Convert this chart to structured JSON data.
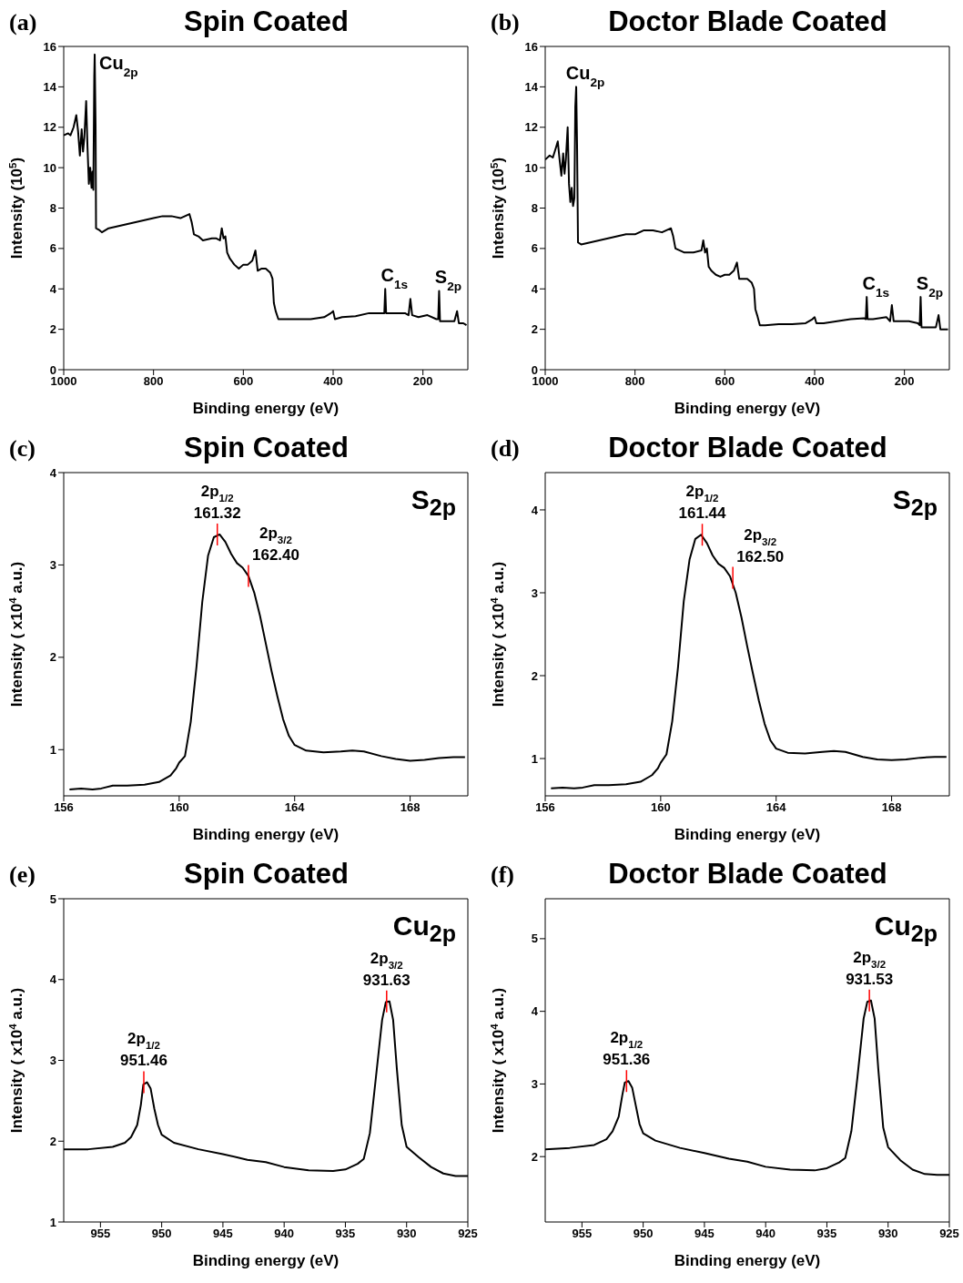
{
  "chart_data": [
    {
      "type": "line",
      "title": "Spin Coated",
      "xlabel": "Binding energy (eV)",
      "ylabel": "Intensity (10$^{5}$)",
      "xlim": [
        1000,
        100
      ],
      "xticks": [
        1000,
        800,
        600,
        400,
        200
      ],
      "ylim": [
        0,
        16
      ],
      "yticks": [
        0,
        2,
        4,
        6,
        8,
        10,
        12,
        14,
        16
      ],
      "annotations": [
        "(a)",
        {
          "text": "Cu$_{2p}$",
          "x": 931,
          "y": 15.6
        },
        {
          "text": "C$_{1s}$",
          "x": 284,
          "y": 4.0
        },
        {
          "text": "S$_{2p}$",
          "x": 164,
          "y": 3.9
        }
      ],
      "x": [
        1000,
        990,
        985,
        978,
        972,
        968,
        964,
        960,
        957,
        954,
        950,
        947,
        944,
        941,
        938,
        936,
        934,
        932,
        931,
        929,
        928,
        920,
        915,
        900,
        880,
        860,
        840,
        820,
        800,
        780,
        760,
        740,
        720,
        715,
        710,
        700,
        690,
        670,
        660,
        652,
        648,
        644,
        640,
        636,
        630,
        620,
        610,
        600,
        590,
        580,
        573,
        568,
        560,
        550,
        540,
        535,
        532,
        528,
        522,
        510,
        480,
        450,
        420,
        405,
        400,
        396,
        380,
        350,
        320,
        290,
        286,
        284,
        282,
        270,
        240,
        232,
        228,
        224,
        210,
        190,
        170,
        166,
        164,
        162,
        150,
        130,
        124,
        120,
        110,
        103
      ],
      "series": [
        {
          "color": "#000000",
          "values": [
            11.6,
            11.7,
            11.6,
            12.0,
            12.6,
            11.8,
            10.6,
            11.9,
            10.8,
            11.5,
            13.3,
            11.0,
            9.2,
            10.0,
            9.0,
            9.8,
            8.9,
            14.5,
            15.6,
            12.0,
            7.0,
            6.9,
            6.8,
            7.0,
            7.1,
            7.2,
            7.3,
            7.4,
            7.5,
            7.6,
            7.6,
            7.5,
            7.7,
            7.3,
            6.7,
            6.6,
            6.4,
            6.5,
            6.5,
            6.4,
            7.0,
            6.5,
            6.6,
            5.8,
            5.5,
            5.2,
            5.0,
            5.2,
            5.2,
            5.4,
            5.9,
            4.9,
            5.0,
            5.0,
            4.8,
            4.5,
            3.3,
            2.9,
            2.5,
            2.5,
            2.5,
            2.5,
            2.6,
            2.8,
            2.9,
            2.5,
            2.6,
            2.65,
            2.8,
            2.8,
            2.8,
            4.0,
            2.8,
            2.8,
            2.8,
            2.7,
            3.5,
            2.7,
            2.6,
            2.7,
            2.5,
            2.5,
            3.9,
            2.4,
            2.4,
            2.4,
            2.9,
            2.3,
            2.3,
            2.2
          ]
        }
      ]
    },
    {
      "type": "line",
      "title": "Doctor Blade Coated",
      "xlabel": "Binding energy (eV)",
      "ylabel": "Intensity (10$^{5}$)",
      "xlim": [
        1000,
        100
      ],
      "xticks": [
        1000,
        800,
        600,
        400,
        200
      ],
      "ylim": [
        0,
        16
      ],
      "yticks": [
        0,
        2,
        4,
        6,
        8,
        10,
        12,
        14,
        16
      ],
      "annotations": [
        "(b)",
        {
          "text": "Cu$_{2p}$",
          "x": 931,
          "y": 14.0
        },
        {
          "text": "C$_{1s}$",
          "x": 284,
          "y": 3.6
        },
        {
          "text": "S$_{2p}$",
          "x": 164,
          "y": 3.6
        }
      ],
      "x": [
        1000,
        990,
        983,
        976,
        972,
        968,
        964,
        960,
        957,
        954,
        950,
        947,
        944,
        941,
        938,
        935,
        933,
        931,
        929,
        927,
        920,
        900,
        880,
        860,
        840,
        820,
        800,
        780,
        760,
        740,
        720,
        715,
        710,
        700,
        690,
        670,
        652,
        648,
        644,
        640,
        636,
        630,
        620,
        610,
        600,
        590,
        580,
        573,
        568,
        560,
        550,
        540,
        535,
        532,
        528,
        522,
        510,
        480,
        450,
        420,
        405,
        400,
        396,
        380,
        350,
        320,
        290,
        286,
        284,
        282,
        270,
        240,
        232,
        228,
        224,
        210,
        190,
        170,
        166,
        164,
        162,
        150,
        130,
        124,
        120,
        110,
        103
      ],
      "series": [
        {
          "color": "#000000",
          "values": [
            10.4,
            10.6,
            10.5,
            11.0,
            11.3,
            10.4,
            9.6,
            10.7,
            9.7,
            10.4,
            12.0,
            9.2,
            8.3,
            9.0,
            8.1,
            8.5,
            13.0,
            14.0,
            11.0,
            6.3,
            6.2,
            6.3,
            6.4,
            6.5,
            6.6,
            6.7,
            6.7,
            6.9,
            6.9,
            6.8,
            7.0,
            6.6,
            6.0,
            5.9,
            5.8,
            5.8,
            5.9,
            6.4,
            5.8,
            6.0,
            5.1,
            4.9,
            4.7,
            4.6,
            4.7,
            4.7,
            4.9,
            5.3,
            4.5,
            4.5,
            4.5,
            4.3,
            4.0,
            3.0,
            2.7,
            2.2,
            2.2,
            2.25,
            2.25,
            2.3,
            2.5,
            2.6,
            2.3,
            2.3,
            2.4,
            2.5,
            2.55,
            2.5,
            3.6,
            2.5,
            2.5,
            2.6,
            2.4,
            3.2,
            2.4,
            2.4,
            2.4,
            2.3,
            2.2,
            3.6,
            2.1,
            2.1,
            2.1,
            2.7,
            2.0,
            2.0,
            2.0
          ]
        }
      ]
    },
    {
      "type": "line",
      "title": "Spin Coated",
      "xlabel": "Binding energy (eV)",
      "ylabel": "Intensity ( x10$^{4}$ a.u.)",
      "xlim": [
        156,
        170
      ],
      "xticks": [
        156,
        160,
        164,
        168
      ],
      "ylim": [
        0.5,
        4
      ],
      "yticks": [
        1,
        2,
        3,
        4
      ],
      "annotations": [
        "(c)",
        "S$_{2p}$",
        {
          "text": "2p$_{1/2}$\n161.32",
          "x": 161.32,
          "y": 3.33
        },
        {
          "text": "2p$_{3/2}$\n162.40",
          "x": 162.4,
          "y": 2.88
        }
      ],
      "x": [
        156.2,
        156.6,
        157.0,
        157.3,
        157.7,
        158.2,
        158.8,
        159.3,
        159.7,
        159.9,
        160.0,
        160.2,
        160.4,
        160.6,
        160.8,
        161.0,
        161.2,
        161.4,
        161.6,
        161.8,
        162.0,
        162.2,
        162.4,
        162.6,
        162.8,
        163.0,
        163.2,
        163.4,
        163.6,
        163.8,
        164.0,
        164.4,
        165.0,
        165.6,
        166.0,
        166.4,
        167.0,
        167.5,
        168.0,
        168.5,
        169.0,
        169.5,
        169.9
      ],
      "series": [
        {
          "color": "#000000",
          "values": [
            0.57,
            0.58,
            0.57,
            0.58,
            0.61,
            0.61,
            0.62,
            0.65,
            0.72,
            0.8,
            0.86,
            0.93,
            1.3,
            1.9,
            2.6,
            3.1,
            3.3,
            3.33,
            3.25,
            3.12,
            3.02,
            2.97,
            2.88,
            2.7,
            2.45,
            2.15,
            1.85,
            1.58,
            1.33,
            1.15,
            1.05,
            0.99,
            0.97,
            0.98,
            0.99,
            0.98,
            0.93,
            0.9,
            0.88,
            0.89,
            0.91,
            0.92,
            0.92
          ]
        }
      ]
    },
    {
      "type": "line",
      "title": "Doctor Blade Coated",
      "xlabel": "Binding energy (eV)",
      "ylabel": "Intensity ( x10$^{4}$ a.u.)",
      "xlim": [
        156,
        170
      ],
      "xticks": [
        156,
        160,
        164,
        168
      ],
      "ylim": [
        0.55,
        4.45
      ],
      "yticks": [
        1,
        2,
        3,
        4
      ],
      "annotations": [
        "(d)",
        "S$_{2p}$",
        {
          "text": "2p$_{1/2}$\n161.44",
          "x": 161.44,
          "y": 3.7
        },
        {
          "text": "2p$_{3/2}$\n162.50",
          "x": 162.5,
          "y": 3.18
        }
      ],
      "x": [
        156.2,
        156.6,
        157.0,
        157.3,
        157.7,
        158.2,
        158.8,
        159.3,
        159.7,
        159.9,
        160.0,
        160.2,
        160.4,
        160.6,
        160.8,
        161.0,
        161.2,
        161.4,
        161.6,
        161.8,
        162.0,
        162.2,
        162.4,
        162.6,
        162.8,
        163.0,
        163.2,
        163.4,
        163.6,
        163.8,
        164.0,
        164.4,
        165.0,
        165.6,
        166.0,
        166.4,
        167.0,
        167.5,
        168.0,
        168.5,
        169.0,
        169.5,
        169.9
      ],
      "series": [
        {
          "color": "#000000",
          "values": [
            0.64,
            0.65,
            0.64,
            0.65,
            0.68,
            0.68,
            0.69,
            0.72,
            0.8,
            0.88,
            0.95,
            1.05,
            1.45,
            2.1,
            2.9,
            3.4,
            3.65,
            3.7,
            3.6,
            3.45,
            3.35,
            3.3,
            3.2,
            3.0,
            2.7,
            2.35,
            2.02,
            1.7,
            1.42,
            1.22,
            1.12,
            1.07,
            1.06,
            1.08,
            1.09,
            1.08,
            1.02,
            0.99,
            0.98,
            0.99,
            1.01,
            1.02,
            1.02
          ]
        }
      ]
    },
    {
      "type": "line",
      "title": "Spin Coated",
      "xlabel": "Binding energy (eV)",
      "ylabel": "Intensity ( x10$^{4}$ a.u.)",
      "xlim": [
        958,
        925
      ],
      "xticks": [
        955,
        950,
        945,
        940,
        935,
        930,
        925
      ],
      "ylim": [
        1,
        5
      ],
      "yticks": [
        1,
        2,
        3,
        4,
        5
      ],
      "annotations": [
        "(e)",
        "Cu$_{2p}$",
        {
          "text": "2p$_{1/2}$\n951.46",
          "x": 951.46,
          "y": 2.73
        },
        {
          "text": "2p$_{3/2}$\n931.63",
          "x": 931.63,
          "y": 3.73
        }
      ],
      "x": [
        958,
        956,
        954,
        953,
        952.5,
        952,
        951.7,
        951.5,
        951.2,
        950.9,
        950.6,
        950.3,
        950,
        949,
        947,
        945,
        943,
        941.5,
        940,
        938,
        936,
        935,
        934,
        933.5,
        933,
        932.5,
        932,
        931.7,
        931.4,
        931.1,
        930.8,
        930.4,
        930,
        929,
        928,
        927,
        926,
        925
      ],
      "series": [
        {
          "color": "#000000",
          "values": [
            1.9,
            1.9,
            1.93,
            1.98,
            2.05,
            2.2,
            2.45,
            2.7,
            2.73,
            2.65,
            2.4,
            2.2,
            2.08,
            1.98,
            1.9,
            1.84,
            1.77,
            1.74,
            1.68,
            1.64,
            1.63,
            1.65,
            1.72,
            1.78,
            2.1,
            2.8,
            3.5,
            3.72,
            3.73,
            3.5,
            2.9,
            2.2,
            1.93,
            1.8,
            1.68,
            1.6,
            1.57,
            1.57
          ]
        }
      ]
    },
    {
      "type": "line",
      "title": "Doctor Blade Coated",
      "xlabel": "Binding energy (eV)",
      "ylabel": "Intensity ( x10$^{4}$ a.u.)",
      "xlim": [
        958,
        925
      ],
      "xticks": [
        955,
        950,
        945,
        940,
        935,
        930,
        925
      ],
      "ylim": [
        1.1,
        5.55
      ],
      "yticks": [
        2,
        3,
        4,
        5
      ],
      "annotations": [
        "(f)",
        "Cu$_{2p}$",
        {
          "text": "2p$_{1/2}$\n951.36",
          "x": 951.36,
          "y": 3.04
        },
        {
          "text": "2p$_{3/2}$\n931.53",
          "x": 931.53,
          "y": 4.15
        }
      ],
      "x": [
        958,
        956,
        954,
        953,
        952.5,
        952,
        951.7,
        951.5,
        951.2,
        950.9,
        950.6,
        950.3,
        950,
        949,
        947,
        945,
        943,
        941.5,
        940,
        938,
        936,
        935,
        934,
        933.5,
        933,
        932.5,
        932,
        931.7,
        931.4,
        931.1,
        930.8,
        930.4,
        930,
        929,
        928,
        927,
        926,
        925
      ],
      "series": [
        {
          "color": "#000000",
          "values": [
            2.1,
            2.12,
            2.16,
            2.24,
            2.35,
            2.55,
            2.85,
            3.02,
            3.04,
            2.95,
            2.7,
            2.45,
            2.32,
            2.22,
            2.12,
            2.05,
            1.97,
            1.93,
            1.86,
            1.82,
            1.81,
            1.84,
            1.92,
            1.98,
            2.35,
            3.1,
            3.9,
            4.13,
            4.15,
            3.9,
            3.2,
            2.4,
            2.13,
            1.95,
            1.82,
            1.76,
            1.75,
            1.75
          ]
        }
      ]
    }
  ]
}
